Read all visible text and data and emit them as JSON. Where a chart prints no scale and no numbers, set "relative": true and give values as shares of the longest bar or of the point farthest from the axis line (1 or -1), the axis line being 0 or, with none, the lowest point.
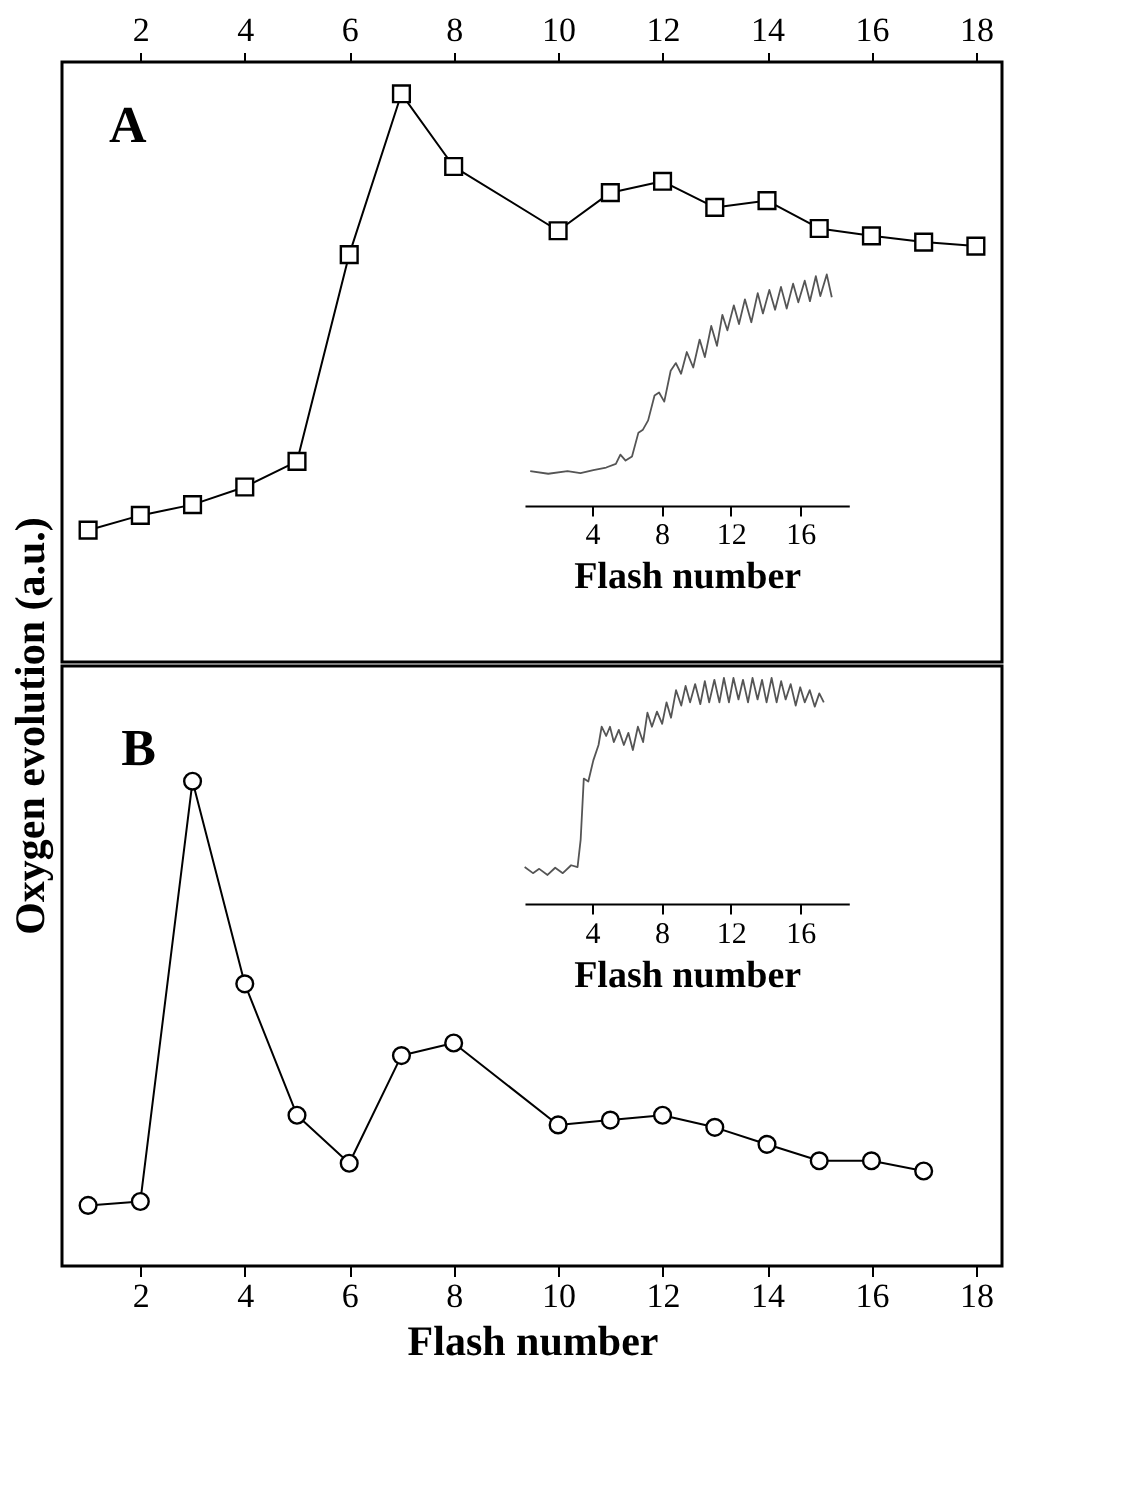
{
  "chart_data": [
    {
      "type": "line",
      "title": "A",
      "ylabel": "Oxygen evolution (a.u.)",
      "relative": true,
      "xlim": [
        0.5,
        18.5
      ],
      "xticks": [
        2,
        4,
        6,
        8,
        10,
        12,
        14,
        16,
        18
      ],
      "tick_labels": "x",
      "marker": "square",
      "line_style": "solid",
      "grid": false,
      "color": "#000000",
      "x": [
        1,
        2,
        3,
        4,
        5,
        6,
        7,
        8,
        10,
        11,
        12,
        13,
        14,
        15,
        16,
        17,
        18
      ],
      "values": [
        0.232,
        0.258,
        0.277,
        0.308,
        0.353,
        0.717,
        1,
        0.872,
        0.759,
        0.826,
        0.846,
        0.8,
        0.812,
        0.763,
        0.75,
        0.739,
        0.732
      ]
    },
    {
      "type": "line",
      "xlabel": "Flash number",
      "relative": true,
      "xlim": [
        0.1,
        18.8
      ],
      "xticks": [
        4,
        8,
        12,
        16
      ],
      "tick_labels": "x",
      "marker": "none",
      "line_style": "solid",
      "color": "#555555",
      "x": [
        0.43,
        1.47,
        2.58,
        3.33,
        4.07,
        4.81,
        5.37,
        5.63,
        5.93,
        6.3,
        6.67,
        6.93,
        7.23,
        7.6,
        7.86,
        8.16,
        8.53,
        8.83,
        9.13,
        9.46,
        9.83,
        10.2,
        10.5,
        10.87,
        11.2,
        11.51,
        11.8,
        12.17,
        12.47,
        12.81,
        13.18,
        13.55,
        13.85,
        14.22,
        14.55,
        14.89,
        15.22,
        15.59,
        15.89,
        16.26,
        16.56,
        16.9,
        17.16,
        17.53,
        17.82
      ],
      "values": [
        0.148,
        0.137,
        0.148,
        0.14,
        0.153,
        0.164,
        0.18,
        0.22,
        0.194,
        0.212,
        0.315,
        0.328,
        0.368,
        0.476,
        0.489,
        0.449,
        0.583,
        0.616,
        0.57,
        0.664,
        0.597,
        0.718,
        0.642,
        0.777,
        0.691,
        0.825,
        0.758,
        0.866,
        0.785,
        0.892,
        0.793,
        0.919,
        0.831,
        0.933,
        0.847,
        0.946,
        0.852,
        0.96,
        0.879,
        0.973,
        0.884,
        0.992,
        0.906,
        1,
        0.901
      ]
    },
    {
      "type": "line",
      "title": "B",
      "xlabel": "Flash number",
      "relative": true,
      "xlim": [
        0.5,
        18.5
      ],
      "xticks": [
        2,
        4,
        6,
        8,
        10,
        12,
        14,
        16,
        18
      ],
      "tick_labels": "x",
      "marker": "circle",
      "line_style": "solid",
      "grid": false,
      "color": "#000000",
      "x": [
        1,
        2,
        3,
        4,
        5,
        6,
        7,
        8,
        10,
        11,
        12,
        13,
        14,
        15,
        16,
        17
      ],
      "values": [
        0.125,
        0.133,
        1,
        0.582,
        0.311,
        0.212,
        0.434,
        0.46,
        0.291,
        0.301,
        0.311,
        0.286,
        0.251,
        0.217,
        0.217,
        0.196
      ]
    },
    {
      "type": "line",
      "xlabel": "Flash number",
      "relative": true,
      "xlim": [
        0.1,
        18.8
      ],
      "xticks": [
        4,
        8,
        12,
        16
      ],
      "tick_labels": "x",
      "marker": "none",
      "line_style": "solid",
      "color": "#555555",
      "x": [
        0.11,
        0.59,
        0.95,
        1.43,
        1.87,
        2.31,
        2.79,
        3.16,
        3.34,
        3.52,
        3.78,
        4.07,
        4.37,
        4.55,
        4.81,
        5.03,
        5.25,
        5.54,
        5.83,
        6.09,
        6.35,
        6.64,
        6.94,
        7.19,
        7.45,
        7.74,
        8.04,
        8.29,
        8.55,
        8.84,
        9.14,
        9.39,
        9.65,
        9.94,
        10.24,
        10.5,
        10.75,
        11.05,
        11.34,
        11.6,
        11.89,
        12.15,
        12.44,
        12.7,
        12.99,
        13.25,
        13.54,
        13.8,
        14.06,
        14.35,
        14.64,
        14.9,
        15.16,
        15.45,
        15.74,
        16.0,
        16.26,
        16.55,
        16.84,
        17.1,
        17.36
      ],
      "values": [
        0.162,
        0.135,
        0.154,
        0.127,
        0.159,
        0.135,
        0.17,
        0.162,
        0.284,
        0.554,
        0.541,
        0.635,
        0.703,
        0.784,
        0.743,
        0.784,
        0.716,
        0.77,
        0.703,
        0.757,
        0.681,
        0.784,
        0.716,
        0.846,
        0.784,
        0.851,
        0.797,
        0.892,
        0.824,
        0.946,
        0.878,
        0.965,
        0.892,
        0.973,
        0.884,
        0.986,
        0.892,
        0.992,
        0.892,
        1,
        0.892,
        1,
        0.905,
        0.992,
        0.892,
        1,
        0.905,
        0.992,
        0.892,
        1,
        0.892,
        0.986,
        0.905,
        0.973,
        0.878,
        0.959,
        0.892,
        0.946,
        0.873,
        0.932,
        0.892
      ]
    }
  ]
}
